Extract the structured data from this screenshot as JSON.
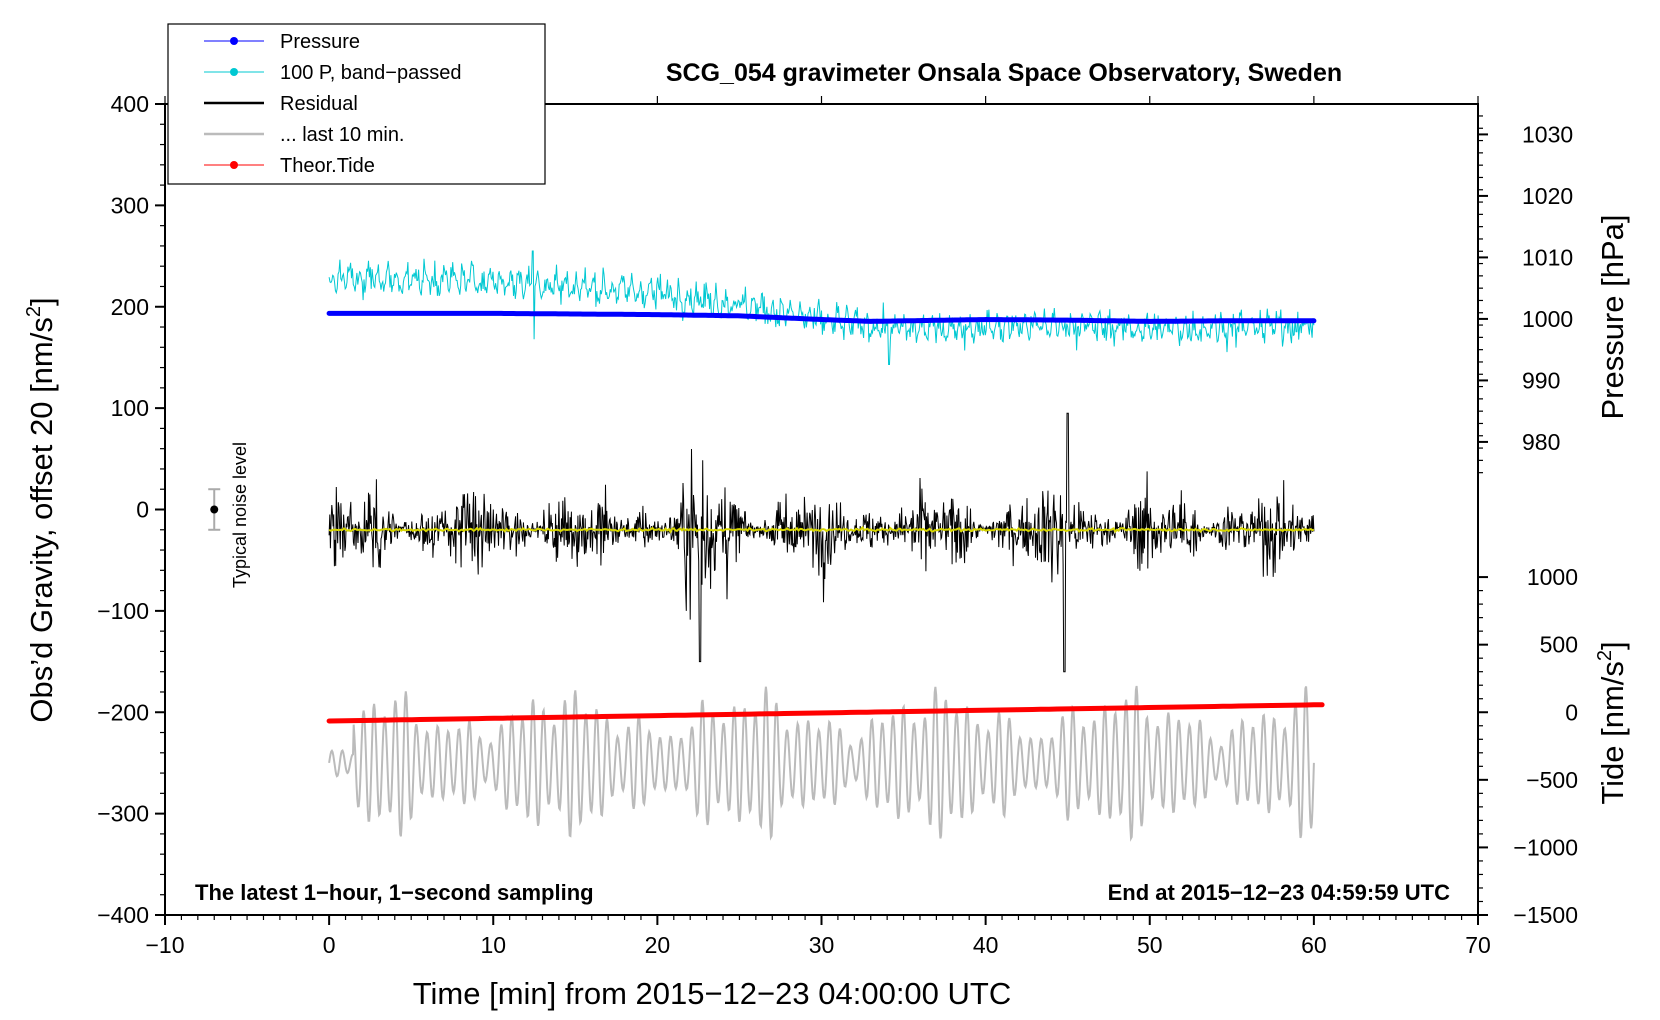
{
  "colors": {
    "pressure": "#0000ff",
    "band_passed": "#00c8d2",
    "residual": "#000000",
    "residual_filtered": "#d6d600",
    "last10": "#bbbbbb",
    "tide": "#ff0000",
    "frame": "#000000"
  },
  "chart_data": {
    "type": "line",
    "title": "SCG_054 gravimeter Onsala Space Observatory, Sweden",
    "xlabel": "Time [min] from 2015−12−23 04:00:00 UTC",
    "ylabel_left": "Obs’d Gravity, offset 20 [nm/s",
    "ylabel_left_sup": "2",
    "ylabel_left_close": "]",
    "ylabel_right_pressure": "Pressure [hPa]",
    "ylabel_right_tide": "Tide [nm/s",
    "ylabel_right_tide_sup": "2",
    "ylabel_right_tide_close": "]",
    "xlim": [
      -10,
      70
    ],
    "ylim_left": [
      -400,
      400
    ],
    "x_ticks": [
      -10,
      0,
      10,
      20,
      30,
      40,
      50,
      60,
      70
    ],
    "x_tick_labels": [
      "−10",
      "0",
      "10",
      "20",
      "30",
      "40",
      "50",
      "60",
      "70"
    ],
    "y_ticks_left": [
      400,
      300,
      200,
      100,
      0,
      -100,
      -200,
      -300,
      -400
    ],
    "y_tick_labels_left": [
      "400",
      "300",
      "200",
      "100",
      "0",
      "−100",
      "−200",
      "−300",
      "−400"
    ],
    "pressure_axis": {
      "ticks": [
        1030,
        1020,
        1010,
        1000,
        990,
        980
      ],
      "tick_labels": [
        "1030",
        "1020",
        "1010",
        "1000",
        "990",
        "980"
      ],
      "gravity_equivalent": {
        "p1": 1000,
        "g1": 188,
        "p2": 1030,
        "g2": 370
      }
    },
    "tide_axis": {
      "ticks": [
        1000,
        500,
        0,
        -500,
        -1000,
        -1500
      ],
      "tick_labels": [
        "1000",
        "500",
        "0",
        "−500",
        "−1000",
        "−1500"
      ],
      "gravity_equivalent": {
        "t1": 0,
        "g1": -200,
        "t2": -1500,
        "g2": -400
      }
    },
    "annotations": {
      "bottom_left": "The latest 1−hour, 1−second sampling",
      "bottom_right": "End at 2015−12−23 04:59:59 UTC",
      "noise_label": "Typical noise level",
      "noise_level": {
        "x": -7,
        "center": 0,
        "half_range": 20
      }
    },
    "legend": [
      {
        "label": "Pressure",
        "series": "pressure",
        "marker": true
      },
      {
        "label": "100 P, band−passed",
        "series": "band_passed",
        "marker": true
      },
      {
        "label": "Residual",
        "series": "residual",
        "marker": false
      },
      {
        "label": "... last 10 min.",
        "series": "last10",
        "marker": false
      },
      {
        "label": "Theor.Tide",
        "series": "tide",
        "marker": true
      }
    ],
    "series": [
      {
        "name": "Pressure",
        "key": "pressure",
        "axis": "pressure",
        "x": [
          0,
          10,
          20,
          25,
          30,
          33,
          40,
          45,
          50,
          55,
          60
        ],
        "y": [
          1000.9,
          1000.9,
          1000.7,
          1000.5,
          999.9,
          999.6,
          999.9,
          999.8,
          999.6,
          999.7,
          999.7
        ],
        "approx_range": [
          999.5,
          1001.0
        ]
      },
      {
        "name": "100 P, band−passed",
        "key": "band_passed",
        "axis": "gravity",
        "x": [
          0,
          10,
          20,
          26,
          30,
          35,
          40,
          45,
          50,
          55,
          60
        ],
        "y": [
          228,
          226,
          214,
          200,
          186,
          178,
          180,
          182,
          178,
          180,
          182
        ],
        "approx_range": [
          143,
          255
        ]
      },
      {
        "name": "Residual",
        "key": "residual",
        "axis": "gravity",
        "x": [
          0,
          10,
          20,
          23,
          30,
          40,
          45,
          50,
          60
        ],
        "y": [
          -20,
          -20,
          -20,
          -20,
          -20,
          -20,
          -20,
          -20,
          -20
        ],
        "approx_range": [
          -165,
          100
        ]
      },
      {
        "name": "Residual filtered",
        "key": "residual_filtered",
        "axis": "gravity",
        "x": [
          0,
          60
        ],
        "y": [
          -20,
          -20
        ]
      },
      {
        "name": "... last 10 min.",
        "key": "last10",
        "axis": "gravity",
        "x": [
          0,
          10,
          20,
          30,
          40,
          50,
          60
        ],
        "y": [
          -250,
          -250,
          -250,
          -250,
          -250,
          -250,
          -250
        ],
        "approx_range": [
          -325,
          -155
        ]
      },
      {
        "name": "Theor.Tide",
        "key": "tide",
        "axis": "tide",
        "x": [
          0,
          10,
          20,
          30,
          40,
          50,
          60
        ],
        "y": [
          -65,
          -45,
          -25,
          -5,
          15,
          35,
          55
        ]
      }
    ]
  }
}
